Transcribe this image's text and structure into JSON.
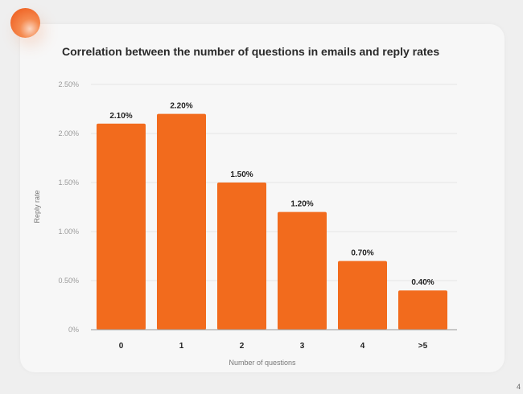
{
  "page_number": "4",
  "chart_data": {
    "type": "bar",
    "title": "Correlation between the number of questions in emails and reply rates",
    "xlabel": "Number of questions",
    "ylabel": "Reply rate",
    "categories": [
      "0",
      "1",
      "2",
      "3",
      "4",
      ">5"
    ],
    "values": [
      2.1,
      2.2,
      1.5,
      1.2,
      0.7,
      0.4
    ],
    "data_labels": [
      "2.10%",
      "2.20%",
      "1.50%",
      "1.20%",
      "0.70%",
      "0.40%"
    ],
    "ylim": [
      0,
      2.5
    ],
    "yticks": [
      "0%",
      "0.50%",
      "1.00%",
      "1.50%",
      "2.00%",
      "2.50%"
    ],
    "grid": true,
    "bar_color": "#f26b1d"
  }
}
